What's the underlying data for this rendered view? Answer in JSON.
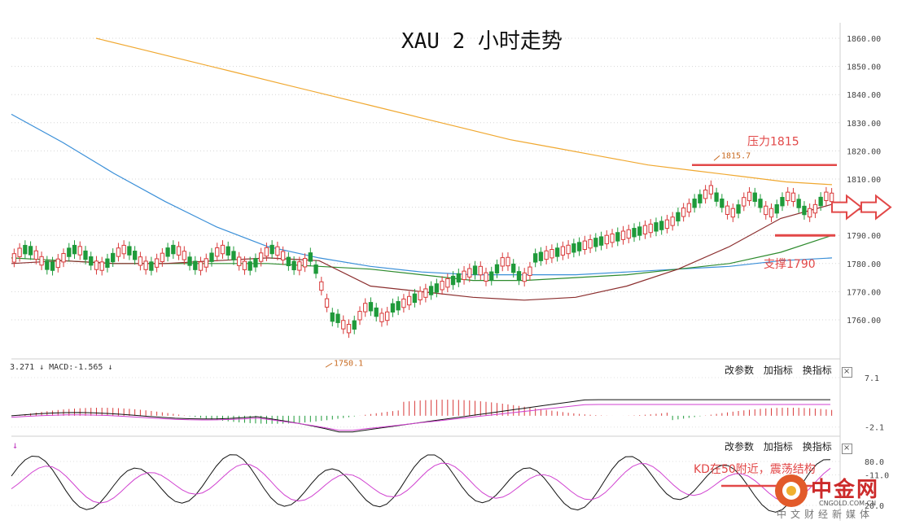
{
  "chart_data": {
    "type": "candlestick",
    "title": "XAU 2 小时走势",
    "price_axis": {
      "ylim": [
        1750,
        1865
      ],
      "ticks": [
        "1860.00",
        "1850.00",
        "1840.00",
        "1830.00",
        "1820.00",
        "1810.00",
        "1800.00",
        "1790.00",
        "1780.00",
        "1770.00",
        "1760.00"
      ]
    },
    "annotations": {
      "resistance_label": "压力1815",
      "resistance_level": 1815,
      "support_label": "支撑1790",
      "support_level": 1790,
      "high_label": "1815.7",
      "high_value": 1815.7,
      "low_label": "1750.1",
      "low_value": 1750.1,
      "kd_note": "KD在50附近，震荡结构"
    },
    "ma_series": [
      {
        "color": "#f0a830",
        "values": [
          1860,
          1856,
          1852,
          1848,
          1844,
          1840,
          1836,
          1832,
          1828,
          1824,
          1821,
          1818,
          1815,
          1813,
          1811,
          1809,
          1808
        ]
      },
      {
        "color": "#3a8fd8",
        "values": [
          1833,
          1823,
          1812,
          1802,
          1793,
          1786,
          1782,
          1779,
          1777,
          1776,
          1776,
          1776,
          1777,
          1778,
          1779,
          1781,
          1782
        ]
      },
      {
        "color": "#2e8b2e",
        "values": [
          1782,
          1781,
          1780,
          1780,
          1780,
          1780,
          1779,
          1778,
          1776,
          1774,
          1774,
          1775,
          1776,
          1778,
          1780,
          1784,
          1790
        ]
      },
      {
        "color": "#8b2e2e",
        "values": [
          1780,
          1781,
          1780,
          1780,
          1781,
          1782,
          1781,
          1772,
          1770,
          1768,
          1767,
          1768,
          1772,
          1778,
          1786,
          1796,
          1801
        ]
      }
    ],
    "macd": {
      "label": "3.271 ↓ MACD:-1.565 ↓",
      "ticks": [
        "7.1",
        "-2.1",
        "-11.0"
      ]
    },
    "kd": {
      "ticks": [
        "80.0",
        "20.0"
      ]
    }
  },
  "toolbar": {
    "btn_params": "改参数",
    "btn_add": "加指标",
    "btn_switch": "换指标",
    "btn_close": "×"
  },
  "watermark": {
    "name": "中金网",
    "url": "CNGOLD.COM.CN",
    "tagline": "中文财经新媒体"
  },
  "colors": {
    "up": "#d83a3a",
    "down": "#1f9a3a",
    "annotation_red": "#e24848",
    "k_line": "#111111",
    "d_line": "#d040d0"
  }
}
